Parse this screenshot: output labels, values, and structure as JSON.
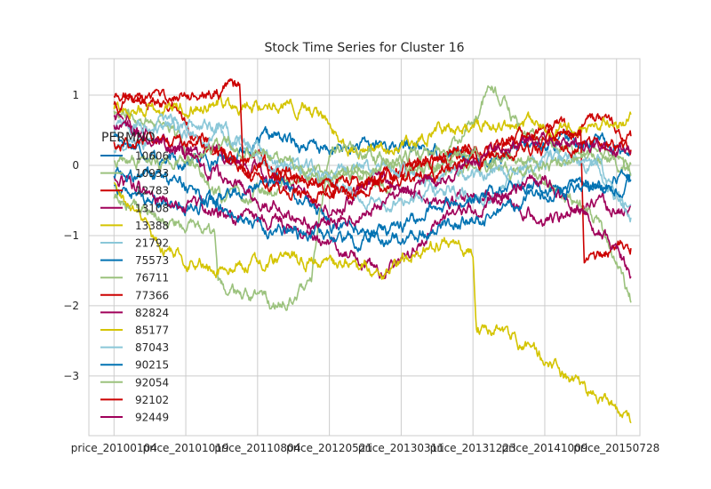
{
  "chart_data": {
    "type": "line",
    "title": "Stock Time Series for Cluster 16",
    "xlabel": "",
    "ylabel": "",
    "x_tick_labels": [
      "price_20100104",
      "price_20101019",
      "price_20110804",
      "price_20120521",
      "price_20130311",
      "price_20131223",
      "price_20141009",
      "price_20150728"
    ],
    "x_tick_index": [
      0,
      200,
      400,
      600,
      800,
      1000,
      1200,
      1400
    ],
    "x_range_index": [
      -70,
      1465
    ],
    "y_ticks": [
      1,
      0,
      -1,
      -2,
      -3
    ],
    "ylim": [
      -3.85,
      1.52
    ],
    "grid": true,
    "legend": {
      "title": "PERMNO",
      "placement": "left"
    },
    "series": [
      {
        "name": "10606",
        "color": "#0072B2",
        "anchors": [
          [
            0,
            0.45
          ],
          [
            150,
            0.05
          ],
          [
            300,
            0.1
          ],
          [
            450,
            0.4
          ],
          [
            600,
            0.2
          ],
          [
            750,
            0.3
          ],
          [
            900,
            0.2
          ],
          [
            1050,
            0.1
          ],
          [
            1200,
            0.3
          ],
          [
            1350,
            0.4
          ],
          [
            1440,
            0.15
          ]
        ]
      },
      {
        "name": "10933",
        "color": "#9BC27D",
        "anchors": [
          [
            0,
            0.8
          ],
          [
            150,
            0.6
          ],
          [
            300,
            -0.5
          ],
          [
            450,
            -0.3
          ],
          [
            600,
            -0.1
          ],
          [
            750,
            -0.2
          ],
          [
            900,
            0.0
          ],
          [
            1000,
            0.6
          ],
          [
            1050,
            1.15
          ],
          [
            1150,
            0.4
          ],
          [
            1300,
            0.2
          ],
          [
            1440,
            0.0
          ]
        ]
      },
      {
        "name": "12783",
        "color": "#CC0000",
        "anchors": [
          [
            0,
            1.0
          ],
          [
            150,
            0.9
          ],
          [
            300,
            0.1
          ],
          [
            450,
            0.0
          ],
          [
            600,
            -0.4
          ],
          [
            750,
            -0.3
          ],
          [
            900,
            0.1
          ],
          [
            1050,
            0.2
          ],
          [
            1200,
            0.5
          ],
          [
            1350,
            0.6
          ],
          [
            1440,
            0.4
          ]
        ]
      },
      {
        "name": "13108",
        "color": "#A0005A",
        "anchors": [
          [
            0,
            0.7
          ],
          [
            150,
            0.3
          ],
          [
            300,
            0.1
          ],
          [
            450,
            -0.2
          ],
          [
            600,
            -0.6
          ],
          [
            750,
            -0.2
          ],
          [
            900,
            -0.5
          ],
          [
            1050,
            -0.4
          ],
          [
            1200,
            -0.8
          ],
          [
            1350,
            -0.5
          ],
          [
            1440,
            -0.7
          ]
        ]
      },
      {
        "name": "13388",
        "color": "#D4C400",
        "anchors": [
          [
            0,
            0.8
          ],
          [
            150,
            0.8
          ],
          [
            300,
            0.9
          ],
          [
            450,
            0.9
          ],
          [
            560,
            0.8
          ],
          [
            650,
            0.2
          ],
          [
            800,
            0.3
          ],
          [
            900,
            0.5
          ],
          [
            1050,
            0.6
          ],
          [
            1200,
            0.5
          ],
          [
            1350,
            0.5
          ],
          [
            1440,
            0.65
          ]
        ]
      },
      {
        "name": "21792",
        "color": "#8AC7D8",
        "anchors": [
          [
            0,
            0.2
          ],
          [
            150,
            0.5
          ],
          [
            300,
            0.4
          ],
          [
            450,
            0.1
          ],
          [
            600,
            -0.2
          ],
          [
            750,
            -0.6
          ],
          [
            900,
            -0.3
          ],
          [
            1050,
            -0.5
          ],
          [
            1200,
            0.1
          ],
          [
            1350,
            0.0
          ],
          [
            1440,
            -0.8
          ]
        ]
      },
      {
        "name": "75573",
        "color": "#0072B2",
        "anchors": [
          [
            0,
            -0.3
          ],
          [
            150,
            -0.6
          ],
          [
            300,
            -0.5
          ],
          [
            450,
            -0.2
          ],
          [
            600,
            -0.8
          ],
          [
            750,
            -1.0
          ],
          [
            900,
            -0.6
          ],
          [
            1050,
            -0.4
          ],
          [
            1200,
            -0.3
          ],
          [
            1350,
            -0.3
          ],
          [
            1440,
            -0.2
          ]
        ]
      },
      {
        "name": "76711",
        "color": "#9BC27D",
        "anchors": [
          [
            0,
            -0.5
          ],
          [
            150,
            -0.8
          ],
          [
            280,
            -1.0
          ],
          [
            290,
            -1.8
          ],
          [
            450,
            -2.0
          ],
          [
            550,
            -1.6
          ],
          [
            600,
            0.3
          ],
          [
            750,
            0.1
          ],
          [
            900,
            -0.1
          ],
          [
            1050,
            0.0
          ],
          [
            1200,
            -0.2
          ],
          [
            1350,
            -0.8
          ],
          [
            1440,
            -1.9
          ]
        ]
      },
      {
        "name": "77366",
        "color": "#CC0000",
        "anchors": [
          [
            0,
            0.3
          ],
          [
            150,
            0.4
          ],
          [
            300,
            0.2
          ],
          [
            450,
            -0.3
          ],
          [
            600,
            -0.5
          ],
          [
            750,
            -0.2
          ],
          [
            900,
            0.1
          ],
          [
            1050,
            0.3
          ],
          [
            1200,
            0.4
          ],
          [
            1300,
            0.5
          ],
          [
            1310,
            -1.3
          ],
          [
            1440,
            -1.1
          ]
        ]
      },
      {
        "name": "82824",
        "color": "#A0005A",
        "anchors": [
          [
            0,
            -0.2
          ],
          [
            150,
            -0.5
          ],
          [
            300,
            -0.7
          ],
          [
            450,
            -0.8
          ],
          [
            600,
            -1.1
          ],
          [
            750,
            -1.5
          ],
          [
            900,
            -0.9
          ],
          [
            1050,
            -0.5
          ],
          [
            1200,
            -0.2
          ],
          [
            1350,
            -0.9
          ],
          [
            1440,
            -1.5
          ]
        ]
      },
      {
        "name": "85177",
        "color": "#D4C400",
        "anchors": [
          [
            0,
            -0.3
          ],
          [
            150,
            -1.3
          ],
          [
            300,
            -1.5
          ],
          [
            450,
            -1.3
          ],
          [
            600,
            -1.4
          ],
          [
            750,
            -1.5
          ],
          [
            900,
            -1.1
          ],
          [
            1000,
            -1.2
          ],
          [
            1010,
            -2.3
          ],
          [
            1100,
            -2.4
          ],
          [
            1200,
            -2.8
          ],
          [
            1350,
            -3.3
          ],
          [
            1440,
            -3.6
          ]
        ]
      },
      {
        "name": "87043",
        "color": "#8AC7D8",
        "anchors": [
          [
            0,
            0.5
          ],
          [
            150,
            0.6
          ],
          [
            300,
            0.5
          ],
          [
            450,
            0.0
          ],
          [
            600,
            -0.1
          ],
          [
            750,
            0.0
          ],
          [
            900,
            -0.2
          ],
          [
            1050,
            -0.1
          ],
          [
            1200,
            0.1
          ],
          [
            1350,
            0.0
          ],
          [
            1440,
            -0.7
          ]
        ]
      },
      {
        "name": "90215",
        "color": "#0072B2",
        "anchors": [
          [
            0,
            -0.1
          ],
          [
            150,
            -0.2
          ],
          [
            300,
            -0.6
          ],
          [
            450,
            -0.9
          ],
          [
            600,
            -1.0
          ],
          [
            750,
            -1.1
          ],
          [
            900,
            -0.9
          ],
          [
            1050,
            -0.7
          ],
          [
            1200,
            -0.4
          ],
          [
            1350,
            -0.3
          ],
          [
            1440,
            -0.2
          ]
        ]
      },
      {
        "name": "92054",
        "color": "#9BC27D",
        "anchors": [
          [
            0,
            0.1
          ],
          [
            150,
            0.0
          ],
          [
            300,
            0.3
          ],
          [
            450,
            0.1
          ],
          [
            600,
            -0.2
          ],
          [
            750,
            0.0
          ],
          [
            900,
            0.2
          ],
          [
            1050,
            0.1
          ],
          [
            1200,
            0.0
          ],
          [
            1350,
            0.2
          ],
          [
            1440,
            -0.1
          ]
        ]
      },
      {
        "name": "92102",
        "color": "#CC0000",
        "anchors": [
          [
            0,
            0.9
          ],
          [
            150,
            1.0
          ],
          [
            300,
            1.1
          ],
          [
            350,
            1.1
          ],
          [
            360,
            0.0
          ],
          [
            450,
            -0.1
          ],
          [
            600,
            -0.3
          ],
          [
            750,
            -0.2
          ],
          [
            900,
            -0.1
          ],
          [
            1050,
            0.1
          ],
          [
            1200,
            0.3
          ],
          [
            1350,
            0.3
          ],
          [
            1440,
            0.25
          ]
        ]
      },
      {
        "name": "92449",
        "color": "#A0005A",
        "anchors": [
          [
            0,
            0.6
          ],
          [
            150,
            0.3
          ],
          [
            300,
            -0.2
          ],
          [
            450,
            -0.6
          ],
          [
            600,
            -0.9
          ],
          [
            750,
            -0.5
          ],
          [
            900,
            -0.2
          ],
          [
            1050,
            0.2
          ],
          [
            1200,
            0.4
          ],
          [
            1350,
            0.3
          ],
          [
            1440,
            0.2
          ]
        ]
      }
    ]
  }
}
